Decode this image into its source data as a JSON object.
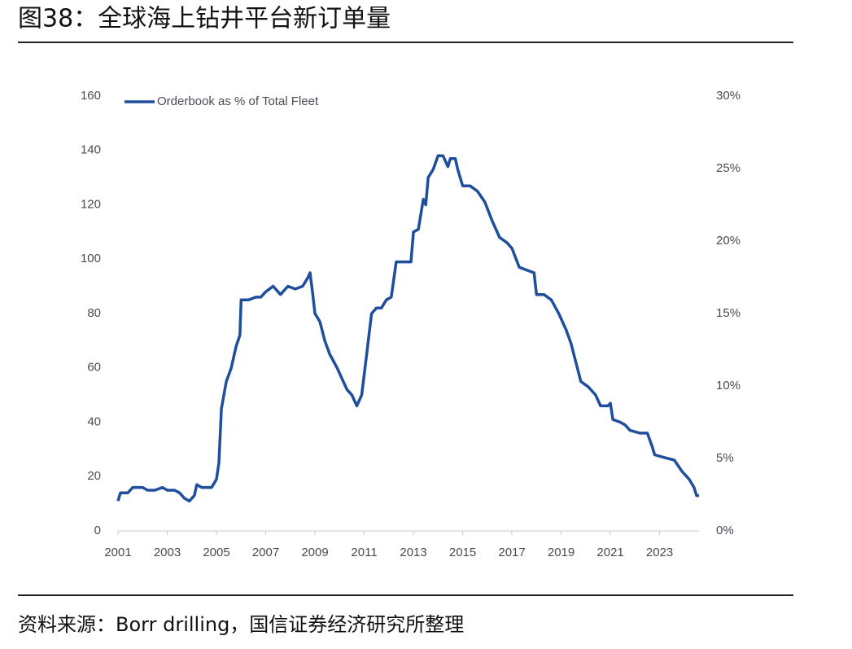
{
  "chart_data": {
    "type": "line",
    "title": "图38：全球海上钻井平台新订单量",
    "source": "资料来源：Borr drilling，国信证券经济研究所整理",
    "x": [
      2001.0,
      2001.1,
      2001.4,
      2001.6,
      2002.0,
      2002.2,
      2002.5,
      2002.8,
      2003.0,
      2003.3,
      2003.5,
      2003.7,
      2003.9,
      2004.1,
      2004.2,
      2004.4,
      2004.8,
      2005.0,
      2005.1,
      2005.2,
      2005.4,
      2005.6,
      2005.8,
      2005.95,
      2006.0,
      2006.3,
      2006.6,
      2006.8,
      2007.0,
      2007.3,
      2007.6,
      2007.9,
      2008.2,
      2008.5,
      2008.7,
      2008.8,
      2008.9,
      2009.0,
      2009.2,
      2009.4,
      2009.6,
      2009.9,
      2010.1,
      2010.3,
      2010.5,
      2010.7,
      2010.9,
      2011.1,
      2011.3,
      2011.5,
      2011.7,
      2011.9,
      2012.1,
      2012.3,
      2012.6,
      2012.9,
      2013.0,
      2013.2,
      2013.4,
      2013.5,
      2013.6,
      2013.8,
      2014.0,
      2014.2,
      2014.4,
      2014.5,
      2014.7,
      2014.8,
      2015.0,
      2015.3,
      2015.6,
      2015.9,
      2016.2,
      2016.5,
      2016.8,
      2017.0,
      2017.3,
      2017.6,
      2017.9,
      2018.0,
      2018.3,
      2018.6,
      2018.9,
      2019.2,
      2019.4,
      2019.6,
      2019.8,
      2020.1,
      2020.4,
      2020.6,
      2020.9,
      2021.0,
      2021.1,
      2021.4,
      2021.6,
      2021.8,
      2022.2,
      2022.5,
      2022.7,
      2022.8,
      2023.2,
      2023.6,
      2023.9,
      2024.2,
      2024.4,
      2024.5,
      2024.6
    ],
    "series": [
      {
        "name": "Orderbook as % of Total Fleet",
        "color": "#1f4e9c",
        "axis": "y2",
        "values": [
          2.06,
          2.63,
          2.63,
          3.0,
          3.0,
          2.81,
          2.81,
          3.0,
          2.81,
          2.81,
          2.63,
          2.25,
          2.06,
          2.44,
          3.19,
          3.0,
          3.0,
          3.56,
          4.69,
          8.44,
          10.31,
          11.25,
          12.75,
          13.5,
          15.94,
          15.94,
          16.13,
          16.13,
          16.5,
          16.88,
          16.31,
          16.88,
          16.69,
          16.88,
          17.44,
          17.81,
          16.5,
          15.0,
          14.44,
          13.13,
          12.19,
          11.25,
          10.5,
          9.75,
          9.38,
          8.63,
          9.38,
          12.19,
          15.0,
          15.38,
          15.38,
          15.94,
          16.13,
          18.56,
          18.56,
          18.56,
          20.63,
          20.81,
          22.88,
          22.5,
          24.38,
          24.94,
          25.88,
          25.88,
          25.13,
          25.69,
          25.69,
          24.94,
          23.81,
          23.81,
          23.44,
          22.69,
          21.38,
          20.25,
          19.88,
          19.5,
          18.19,
          18.0,
          17.81,
          16.31,
          16.31,
          15.94,
          15.0,
          13.88,
          12.94,
          11.63,
          10.31,
          9.94,
          9.38,
          8.63,
          8.63,
          8.81,
          7.69,
          7.5,
          7.31,
          6.94,
          6.75,
          6.75,
          5.81,
          5.25,
          5.06,
          4.88,
          4.13,
          3.56,
          3.0,
          2.44,
          2.44
        ]
      }
    ],
    "xlim": [
      2001,
      2024.6
    ],
    "xticks": [
      2001,
      2003,
      2005,
      2007,
      2009,
      2011,
      2013,
      2015,
      2017,
      2019,
      2021,
      2023
    ],
    "ylim": [
      0,
      160
    ],
    "yticks": [
      0,
      20,
      40,
      60,
      80,
      100,
      120,
      140,
      160
    ],
    "y2lim": [
      0,
      30
    ],
    "y2ticks": [
      {
        "value": 0,
        "label": "0%"
      },
      {
        "value": 5,
        "label": "5%"
      },
      {
        "value": 10,
        "label": "10%"
      },
      {
        "value": 15,
        "label": "15%"
      },
      {
        "value": 20,
        "label": "20%"
      },
      {
        "value": 25,
        "label": "25%"
      },
      {
        "value": 30,
        "label": "30%"
      }
    ],
    "grid": false,
    "legend": "top-left"
  }
}
